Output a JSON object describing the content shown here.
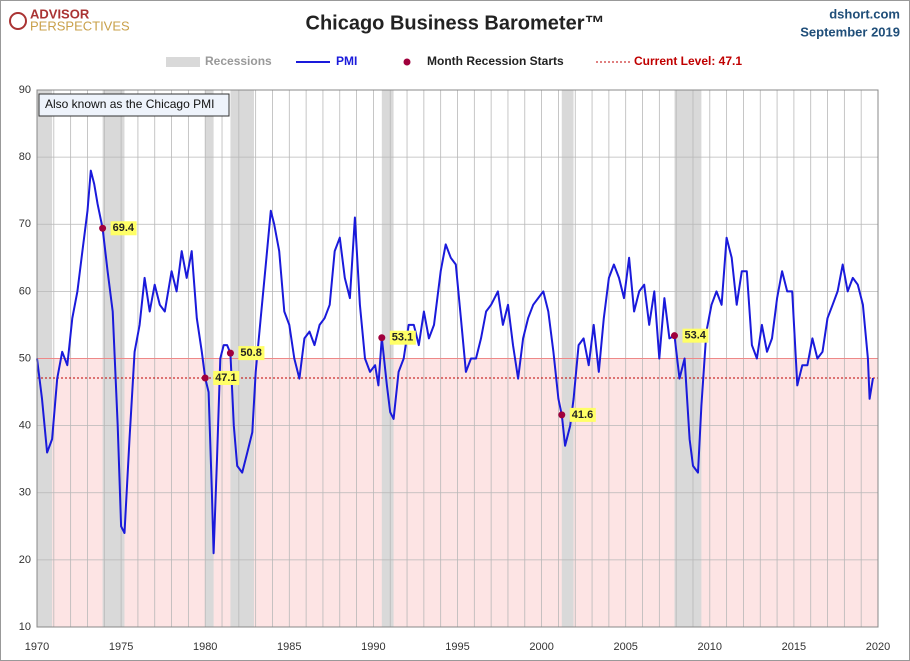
{
  "logo": {
    "line1": "ADVISOR",
    "line2": "PERSPECTIVES"
  },
  "source": "dshort.com",
  "date": "September 2019",
  "chart_data": {
    "type": "line",
    "title": "Chicago Business Barometer™",
    "annotation": "Also known as the Chicago PMI",
    "legend": {
      "recessions": "Recessions",
      "starts": "Month Recession Starts",
      "current": "Current Level: 47.1"
    },
    "xlim": [
      1970,
      2020
    ],
    "xticks": [
      1970,
      1975,
      1980,
      1985,
      1990,
      1995,
      2000,
      2005,
      2010,
      2015,
      2020
    ],
    "x_minor_ticks": [
      1971,
      1972,
      1973,
      1974,
      1976,
      1977,
      1978,
      1979,
      1981,
      1982,
      1983,
      1984,
      1986,
      1987,
      1988,
      1989,
      1991,
      1992,
      1993,
      1994,
      1996,
      1997,
      1998,
      1999,
      2001,
      2002,
      2003,
      2004,
      2006,
      2007,
      2008,
      2009,
      2011,
      2012,
      2013,
      2014,
      2016,
      2017,
      2018,
      2019
    ],
    "ylim": [
      10,
      90
    ],
    "yticks": [
      10,
      20,
      30,
      40,
      50,
      60,
      70,
      80,
      90
    ],
    "grid": true,
    "threshold": 50,
    "threshold_color": "#fde4e4",
    "recessions": [
      [
        1969.9,
        1970.9
      ],
      [
        1973.9,
        1975.2
      ],
      [
        1980.0,
        1980.5
      ],
      [
        1981.5,
        1982.9
      ],
      [
        1990.5,
        1991.2
      ],
      [
        2001.2,
        2001.9
      ],
      [
        2007.9,
        2009.5
      ]
    ],
    "recession_color": "#d9d9d9",
    "current_level": 47.1,
    "current_color": "#c00000",
    "recession_starts": {
      "x": [
        1973.9,
        1980.0,
        1981.5,
        1990.5,
        2001.2,
        2007.9
      ],
      "values": [
        69.4,
        47.1,
        50.8,
        53.1,
        41.6,
        53.4
      ],
      "color": "#a0003c"
    },
    "series": [
      {
        "name": "PMI",
        "color": "#1a1adb",
        "x": [
          1970.0,
          1970.3,
          1970.6,
          1970.9,
          1971.2,
          1971.5,
          1971.8,
          1972.1,
          1972.4,
          1972.7,
          1973.0,
          1973.2,
          1973.4,
          1973.6,
          1973.9,
          1974.2,
          1974.5,
          1974.8,
          1975.0,
          1975.2,
          1975.5,
          1975.8,
          1976.1,
          1976.4,
          1976.7,
          1977.0,
          1977.3,
          1977.6,
          1978.0,
          1978.3,
          1978.6,
          1978.9,
          1979.2,
          1979.5,
          1979.8,
          1980.0,
          1980.2,
          1980.4,
          1980.5,
          1980.7,
          1980.9,
          1981.1,
          1981.3,
          1981.5,
          1981.7,
          1981.9,
          1982.2,
          1982.5,
          1982.8,
          1983.0,
          1983.3,
          1983.6,
          1983.9,
          1984.1,
          1984.4,
          1984.7,
          1985.0,
          1985.3,
          1985.6,
          1985.9,
          1986.2,
          1986.5,
          1986.8,
          1987.1,
          1987.4,
          1987.7,
          1988.0,
          1988.3,
          1988.6,
          1988.9,
          1989.2,
          1989.5,
          1989.8,
          1990.1,
          1990.3,
          1990.5,
          1990.8,
          1991.0,
          1991.2,
          1991.5,
          1991.8,
          1992.1,
          1992.4,
          1992.7,
          1993.0,
          1993.3,
          1993.6,
          1994.0,
          1994.3,
          1994.6,
          1994.9,
          1995.2,
          1995.5,
          1995.8,
          1996.1,
          1996.4,
          1996.7,
          1997.0,
          1997.4,
          1997.7,
          1998.0,
          1998.3,
          1998.6,
          1998.9,
          1999.2,
          1999.5,
          1999.8,
          2000.1,
          2000.4,
          2000.7,
          2001.0,
          2001.2,
          2001.4,
          2001.7,
          2001.9,
          2002.2,
          2002.5,
          2002.8,
          2003.1,
          2003.4,
          2003.7,
          2004.0,
          2004.3,
          2004.6,
          2004.9,
          2005.2,
          2005.5,
          2005.8,
          2006.1,
          2006.4,
          2006.7,
          2007.0,
          2007.3,
          2007.6,
          2007.9,
          2008.2,
          2008.5,
          2008.8,
          2009.0,
          2009.3,
          2009.5,
          2009.8,
          2010.1,
          2010.4,
          2010.7,
          2011.0,
          2011.3,
          2011.6,
          2011.9,
          2012.2,
          2012.5,
          2012.8,
          2013.1,
          2013.4,
          2013.7,
          2014.0,
          2014.3,
          2014.6,
          2014.9,
          2015.2,
          2015.5,
          2015.8,
          2016.1,
          2016.4,
          2016.7,
          2017.0,
          2017.3,
          2017.6,
          2017.9,
          2018.2,
          2018.5,
          2018.8,
          2019.1,
          2019.4,
          2019.5,
          2019.7
        ],
        "values": [
          50,
          44,
          36,
          38,
          47,
          51,
          49,
          56,
          60,
          66,
          72,
          78,
          76,
          73,
          69.4,
          63,
          57,
          40,
          25,
          24,
          38,
          51,
          55,
          62,
          57,
          61,
          58,
          57,
          63,
          60,
          66,
          62,
          66,
          56,
          51,
          47.1,
          45,
          30,
          21,
          35,
          50,
          52,
          52,
          50.8,
          40,
          34,
          33,
          36,
          39,
          48,
          56,
          64,
          72,
          70,
          66,
          57,
          55,
          50,
          47,
          53,
          54,
          52,
          55,
          56,
          58,
          66,
          68,
          62,
          59,
          71,
          58,
          50,
          48,
          49,
          46,
          53.1,
          46,
          42,
          41,
          48,
          50,
          55,
          55,
          52,
          57,
          53,
          55,
          63,
          67,
          65,
          64,
          56,
          48,
          50,
          50,
          53,
          57,
          58,
          60,
          55,
          58,
          52,
          47,
          53,
          56,
          58,
          59,
          60,
          57,
          51,
          44,
          41.6,
          37,
          40,
          44,
          52,
          53,
          49,
          55,
          48,
          56,
          62,
          64,
          62,
          59,
          65,
          57,
          60,
          61,
          55,
          60,
          50,
          59,
          53,
          53.4,
          47,
          50,
          38,
          34,
          33,
          43,
          54,
          58,
          60,
          58,
          68,
          65,
          58,
          63,
          63,
          52,
          50,
          55,
          51,
          53,
          59,
          63,
          60,
          60,
          46,
          49,
          49,
          53,
          50,
          51,
          56,
          58,
          60,
          64,
          60,
          62,
          61,
          58,
          50,
          44,
          47.1
        ]
      }
    ]
  }
}
